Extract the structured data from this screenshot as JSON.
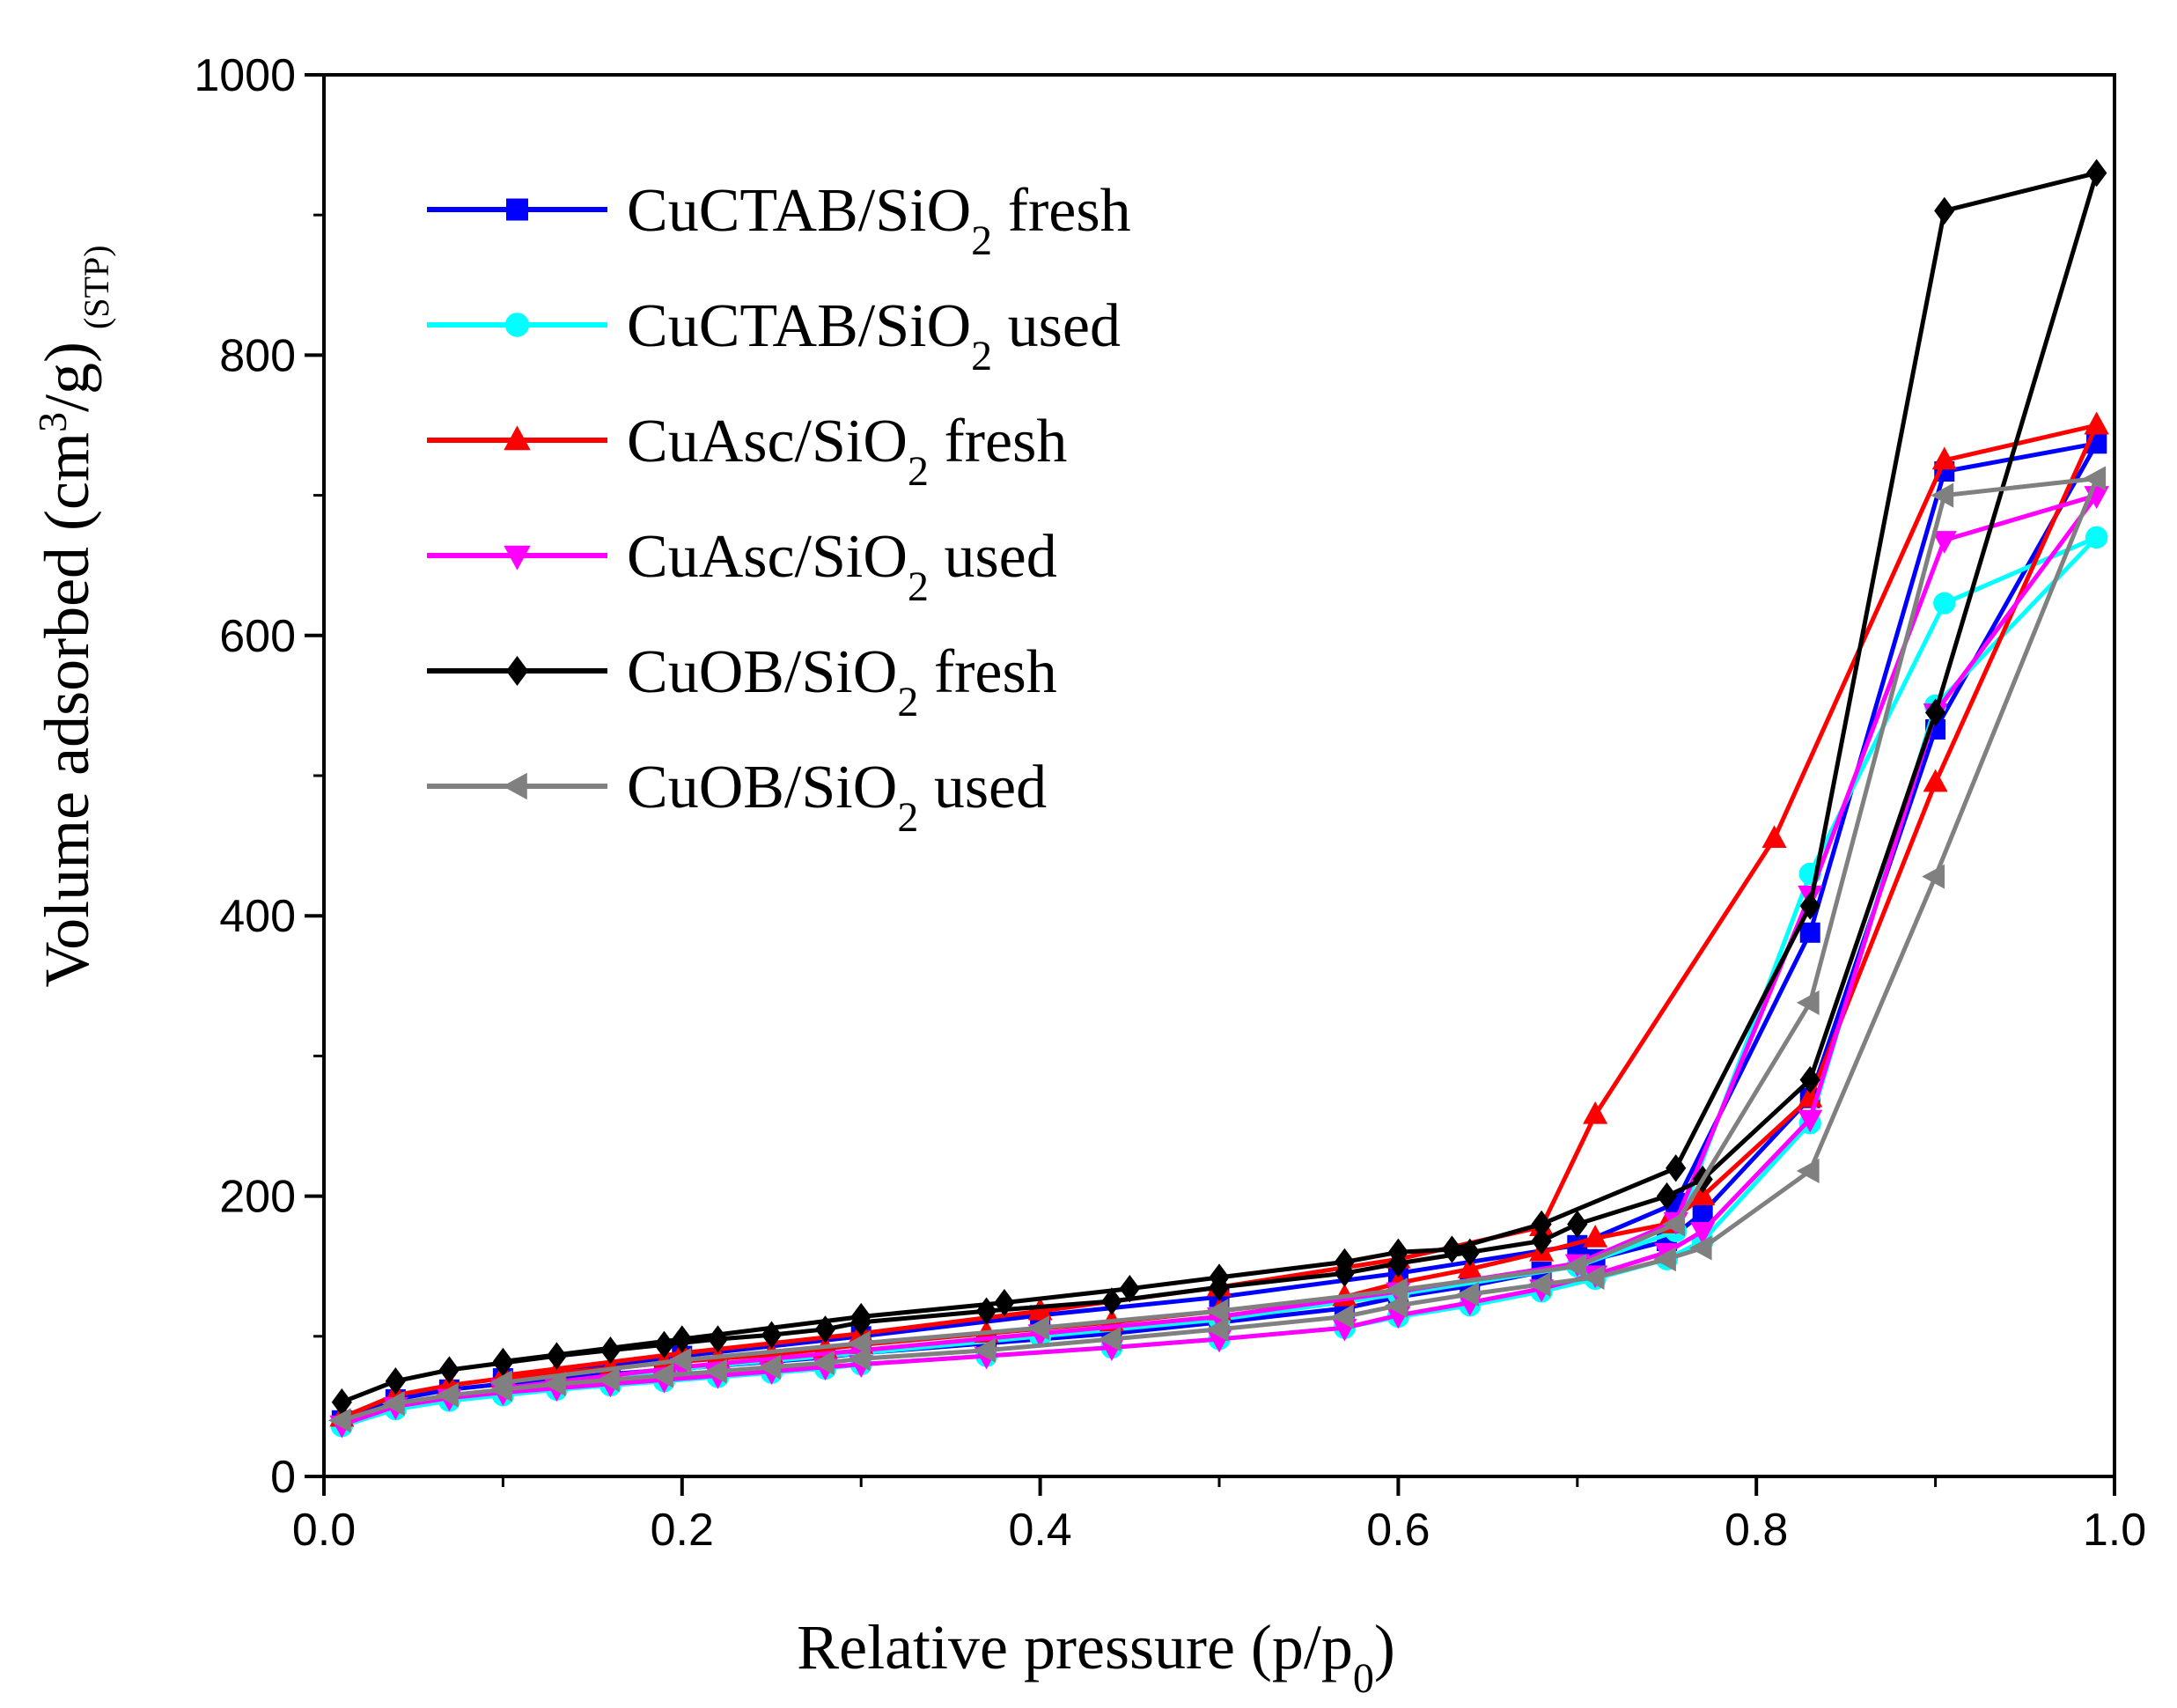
{
  "chart_data": {
    "type": "line",
    "title": "",
    "xlabel": "Relative pressure (p/p0)",
    "xlabel_parts": {
      "main": "Relative pressure (p/p",
      "sub": "0",
      "close": ")"
    },
    "ylabel": "Volume adsorbed (cm3/g) (STP)",
    "ylabel_parts": {
      "main": "Volume adsorbed (cm",
      "sup": "3",
      "rest": "/g)",
      "small": "(STP)"
    },
    "xlim": [
      0.0,
      1.0
    ],
    "ylim": [
      0,
      1000
    ],
    "xticks": [
      "0.0",
      "0.2",
      "0.4",
      "0.6",
      "0.8",
      "1.0"
    ],
    "yticks": [
      "0",
      "200",
      "400",
      "600",
      "800",
      "1000"
    ],
    "legend_position": "top-left",
    "series": [
      {
        "name": "CuCTAB/SiO2 fresh",
        "label_parts": {
          "main": "CuCTAB/SiO",
          "sub": "2",
          "rest": " fresh"
        },
        "color": "#0000ff",
        "marker": "square",
        "adsorption": [
          [
            0.01,
            40
          ],
          [
            0.04,
            55
          ],
          [
            0.07,
            62
          ],
          [
            0.1,
            66
          ],
          [
            0.13,
            70
          ],
          [
            0.16,
            73
          ],
          [
            0.19,
            76
          ],
          [
            0.22,
            79
          ],
          [
            0.25,
            82
          ],
          [
            0.28,
            85
          ],
          [
            0.3,
            88
          ],
          [
            0.37,
            95
          ],
          [
            0.44,
            102
          ],
          [
            0.5,
            110
          ],
          [
            0.57,
            120
          ],
          [
            0.6,
            128
          ],
          [
            0.64,
            136
          ],
          [
            0.68,
            146
          ],
          [
            0.71,
            155
          ],
          [
            0.75,
            168
          ],
          [
            0.77,
            188
          ],
          [
            0.83,
            270
          ],
          [
            0.9,
            533
          ],
          [
            0.99,
            737
          ]
        ],
        "desorption": [
          [
            0.99,
            737
          ],
          [
            0.905,
            717
          ],
          [
            0.83,
            388
          ],
          [
            0.755,
            195
          ],
          [
            0.7,
            165
          ],
          [
            0.6,
            145
          ],
          [
            0.5,
            128
          ],
          [
            0.4,
            115
          ],
          [
            0.3,
            100
          ],
          [
            0.2,
            86
          ],
          [
            0.1,
            70
          ]
        ]
      },
      {
        "name": "CuCTAB/SiO2 used",
        "label_parts": {
          "main": "CuCTAB/SiO",
          "sub": "2",
          "rest": " used"
        },
        "color": "#00ffff",
        "marker": "circle",
        "adsorption": [
          [
            0.01,
            36
          ],
          [
            0.04,
            48
          ],
          [
            0.07,
            54
          ],
          [
            0.1,
            58
          ],
          [
            0.13,
            62
          ],
          [
            0.16,
            65
          ],
          [
            0.19,
            68
          ],
          [
            0.22,
            71
          ],
          [
            0.25,
            74
          ],
          [
            0.28,
            77
          ],
          [
            0.3,
            80
          ],
          [
            0.37,
            86
          ],
          [
            0.44,
            92
          ],
          [
            0.5,
            98
          ],
          [
            0.57,
            106
          ],
          [
            0.6,
            114
          ],
          [
            0.64,
            122
          ],
          [
            0.68,
            132
          ],
          [
            0.71,
            141
          ],
          [
            0.75,
            155
          ],
          [
            0.77,
            168
          ],
          [
            0.83,
            252
          ],
          [
            0.9,
            550
          ],
          [
            0.99,
            670
          ]
        ],
        "desorption": [
          [
            0.99,
            670
          ],
          [
            0.905,
            623
          ],
          [
            0.83,
            430
          ],
          [
            0.755,
            175
          ],
          [
            0.7,
            150
          ],
          [
            0.6,
            130
          ],
          [
            0.5,
            112
          ],
          [
            0.4,
            100
          ],
          [
            0.3,
            88
          ],
          [
            0.2,
            77
          ],
          [
            0.1,
            62
          ]
        ]
      },
      {
        "name": "CuAsc/SiO2 fresh",
        "label_parts": {
          "main": "CuAsc/SiO",
          "sub": "2",
          "rest": " fresh"
        },
        "color": "#ff0000",
        "marker": "triangle-up",
        "adsorption": [
          [
            0.01,
            42
          ],
          [
            0.04,
            58
          ],
          [
            0.07,
            65
          ],
          [
            0.1,
            70
          ],
          [
            0.13,
            74
          ],
          [
            0.16,
            77
          ],
          [
            0.19,
            81
          ],
          [
            0.22,
            84
          ],
          [
            0.25,
            87
          ],
          [
            0.28,
            91
          ],
          [
            0.3,
            94
          ],
          [
            0.37,
            102
          ],
          [
            0.44,
            110
          ],
          [
            0.5,
            118
          ],
          [
            0.57,
            128
          ],
          [
            0.6,
            138
          ],
          [
            0.64,
            148
          ],
          [
            0.68,
            160
          ],
          [
            0.71,
            170
          ],
          [
            0.75,
            180
          ],
          [
            0.77,
            200
          ],
          [
            0.83,
            270
          ],
          [
            0.9,
            495
          ],
          [
            0.99,
            750
          ]
        ],
        "desorption": [
          [
            0.99,
            750
          ],
          [
            0.905,
            725
          ],
          [
            0.81,
            455
          ],
          [
            0.71,
            258
          ],
          [
            0.68,
            178
          ],
          [
            0.6,
            155
          ],
          [
            0.5,
            135
          ],
          [
            0.4,
            118
          ],
          [
            0.3,
            102
          ],
          [
            0.2,
            88
          ],
          [
            0.1,
            72
          ]
        ]
      },
      {
        "name": "CuAsc/SiO2 used",
        "label_parts": {
          "main": "CuAsc/SiO",
          "sub": "2",
          "rest": " used"
        },
        "color": "#ff00ff",
        "marker": "triangle-down",
        "adsorption": [
          [
            0.01,
            37
          ],
          [
            0.04,
            50
          ],
          [
            0.07,
            56
          ],
          [
            0.1,
            60
          ],
          [
            0.13,
            63
          ],
          [
            0.16,
            66
          ],
          [
            0.19,
            69
          ],
          [
            0.22,
            72
          ],
          [
            0.25,
            75
          ],
          [
            0.28,
            78
          ],
          [
            0.3,
            80
          ],
          [
            0.37,
            86
          ],
          [
            0.44,
            92
          ],
          [
            0.5,
            98
          ],
          [
            0.57,
            106
          ],
          [
            0.6,
            115
          ],
          [
            0.64,
            124
          ],
          [
            0.68,
            134
          ],
          [
            0.71,
            144
          ],
          [
            0.75,
            160
          ],
          [
            0.77,
            175
          ],
          [
            0.83,
            255
          ],
          [
            0.9,
            545
          ],
          [
            0.99,
            700
          ]
        ],
        "desorption": [
          [
            0.99,
            700
          ],
          [
            0.905,
            668
          ],
          [
            0.83,
            415
          ],
          [
            0.755,
            182
          ],
          [
            0.7,
            152
          ],
          [
            0.6,
            132
          ],
          [
            0.5,
            114
          ],
          [
            0.4,
            102
          ],
          [
            0.3,
            90
          ],
          [
            0.2,
            78
          ],
          [
            0.1,
            63
          ]
        ]
      },
      {
        "name": "CuOB/SiO2 fresh",
        "label_parts": {
          "main": "CuOB/SiO",
          "sub": "2",
          "rest": " fresh"
        },
        "color": "#000000",
        "marker": "diamond",
        "adsorption": [
          [
            0.01,
            53
          ],
          [
            0.04,
            68
          ],
          [
            0.07,
            76
          ],
          [
            0.1,
            81
          ],
          [
            0.13,
            86
          ],
          [
            0.16,
            90
          ],
          [
            0.19,
            94
          ],
          [
            0.22,
            98
          ],
          [
            0.25,
            101
          ],
          [
            0.28,
            105
          ],
          [
            0.3,
            110
          ],
          [
            0.37,
            118
          ],
          [
            0.44,
            125
          ],
          [
            0.5,
            135
          ],
          [
            0.57,
            145
          ],
          [
            0.6,
            152
          ],
          [
            0.64,
            160
          ],
          [
            0.68,
            168
          ],
          [
            0.7,
            180
          ],
          [
            0.75,
            200
          ],
          [
            0.77,
            212
          ],
          [
            0.83,
            283
          ],
          [
            0.9,
            545
          ],
          [
            0.99,
            930
          ]
        ],
        "desorption": [
          [
            0.99,
            930
          ],
          [
            0.905,
            903
          ],
          [
            0.83,
            407
          ],
          [
            0.755,
            220
          ],
          [
            0.68,
            180
          ],
          [
            0.63,
            162
          ],
          [
            0.6,
            160
          ],
          [
            0.57,
            153
          ],
          [
            0.5,
            142
          ],
          [
            0.45,
            134
          ],
          [
            0.38,
            124
          ],
          [
            0.3,
            114
          ],
          [
            0.2,
            98
          ],
          [
            0.1,
            82
          ]
        ]
      },
      {
        "name": "CuOB/SiO2 used",
        "label_parts": {
          "main": "CuOB/SiO",
          "sub": "2",
          "rest": " used"
        },
        "color": "#808080",
        "marker": "triangle-left",
        "adsorption": [
          [
            0.01,
            40
          ],
          [
            0.04,
            52
          ],
          [
            0.07,
            58
          ],
          [
            0.1,
            62
          ],
          [
            0.13,
            66
          ],
          [
            0.16,
            69
          ],
          [
            0.19,
            72
          ],
          [
            0.22,
            75
          ],
          [
            0.25,
            78
          ],
          [
            0.28,
            81
          ],
          [
            0.3,
            84
          ],
          [
            0.37,
            90
          ],
          [
            0.44,
            98
          ],
          [
            0.5,
            105
          ],
          [
            0.57,
            114
          ],
          [
            0.6,
            122
          ],
          [
            0.64,
            130
          ],
          [
            0.68,
            137
          ],
          [
            0.71,
            142
          ],
          [
            0.75,
            155
          ],
          [
            0.77,
            163
          ],
          [
            0.83,
            218
          ],
          [
            0.9,
            428
          ],
          [
            0.99,
            712
          ]
        ],
        "desorption": [
          [
            0.99,
            712
          ],
          [
            0.905,
            700
          ],
          [
            0.83,
            338
          ],
          [
            0.755,
            180
          ],
          [
            0.7,
            150
          ],
          [
            0.6,
            133
          ],
          [
            0.5,
            118
          ],
          [
            0.4,
            106
          ],
          [
            0.3,
            95
          ],
          [
            0.2,
            83
          ],
          [
            0.1,
            67
          ]
        ]
      }
    ]
  }
}
